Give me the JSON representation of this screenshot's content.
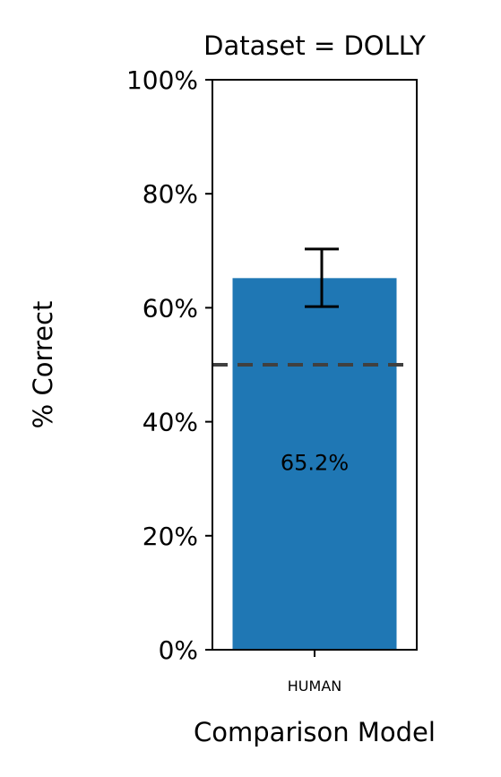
{
  "chart_data": {
    "type": "bar",
    "title": "Dataset = DOLLY",
    "xlabel": "Comparison Model",
    "ylabel": "% Correct",
    "categories": [
      "HUMAN"
    ],
    "values": [
      65.2
    ],
    "bar_labels": [
      "65.2%"
    ],
    "error_bar": {
      "low": 60.2,
      "high": 70.3
    },
    "reference_line": {
      "value": 50,
      "style": "dashed"
    },
    "ylim": [
      0,
      100
    ],
    "yticks": [
      0,
      20,
      40,
      60,
      80,
      100
    ],
    "ytick_labels": [
      "0%",
      "20%",
      "40%",
      "60%",
      "80%",
      "100%"
    ],
    "grid": false,
    "colors": {
      "bar": "#1f77b4",
      "reference_line": "#404040",
      "error_bar": "#000000"
    }
  }
}
